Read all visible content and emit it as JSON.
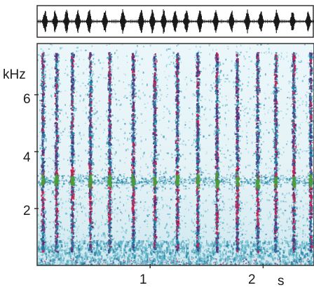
{
  "chart_data": [
    {
      "type": "line",
      "panel": "oscillogram",
      "title": "",
      "xlabel": "",
      "ylabel": "",
      "xlim": [
        0,
        2.45
      ],
      "ylim": [
        -1,
        1
      ],
      "pulse_times_s": [
        0.07,
        0.16,
        0.26,
        0.36,
        0.46,
        0.6,
        0.76,
        0.92,
        1.02,
        1.12,
        1.22,
        1.32,
        1.44,
        1.58,
        1.72,
        1.86,
        1.98,
        2.12,
        2.26,
        2.4
      ],
      "pulse_amplitudes": [
        0.8,
        0.85,
        0.85,
        0.9,
        0.9,
        0.95,
        0.95,
        0.9,
        0.9,
        0.9,
        0.85,
        0.9,
        0.9,
        0.9,
        0.85,
        0.85,
        0.85,
        0.85,
        0.8,
        0.8
      ],
      "color": "#1a1a1a"
    },
    {
      "type": "heatmap",
      "panel": "spectrogram",
      "title": "",
      "xlabel": "s",
      "ylabel": "kHz",
      "xlim": [
        0,
        2.45
      ],
      "ylim": [
        0,
        7.8
      ],
      "x_ticks": [
        1,
        2
      ],
      "y_ticks": [
        2,
        4,
        6
      ],
      "grid": false,
      "call_onsets_s": [
        0.05,
        0.17,
        0.31,
        0.47,
        0.64,
        0.85,
        1.04,
        1.24,
        1.42,
        1.59,
        1.77,
        1.95,
        2.11,
        2.27,
        2.42
      ],
      "frequency_band_khz": [
        0.5,
        7.5
      ],
      "peak_energy_band_khz": [
        1.5,
        3.5
      ],
      "dominant_frequency_khz": 3.0,
      "colors": {
        "background": "#f4f9fb",
        "noise": "#5ab4c8",
        "call_low": "#1f7fa3",
        "call_mid": "#5a2d7a",
        "call_high": "#d02050",
        "call_peak": "#4a9e3a"
      }
    }
  ],
  "labels": {
    "y_unit": "kHz",
    "y_tick_2": "2",
    "y_tick_4": "4",
    "y_tick_6": "6",
    "x_tick_1": "1",
    "x_tick_2": "2",
    "x_unit": "s"
  }
}
